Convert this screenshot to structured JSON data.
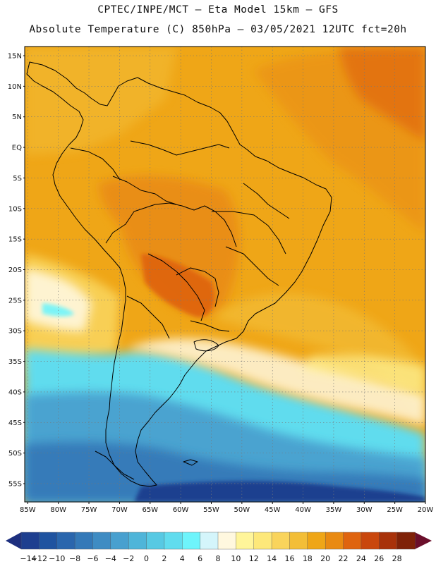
{
  "header": {
    "line1": "CPTEC/INPE/MCT –   Eta Model 15km – GFS",
    "line2": "Absolute Temperature (C) 850hPa – 03/05/2021 12UTC fct=20h"
  },
  "map": {
    "lat_labels": [
      "15N",
      "10N",
      "5N",
      "EQ",
      "5S",
      "10S",
      "15S",
      "20S",
      "25S",
      "30S",
      "35S",
      "40S",
      "45S",
      "50S",
      "55S"
    ],
    "lat_values": [
      15,
      10,
      5,
      0,
      -5,
      -10,
      -15,
      -20,
      -25,
      -30,
      -35,
      -40,
      -45,
      -50,
      -55
    ],
    "lon_labels": [
      "85W",
      "80W",
      "75W",
      "70W",
      "65W",
      "60W",
      "55W",
      "50W",
      "45W",
      "40W",
      "35W",
      "30W",
      "25W",
      "20W"
    ],
    "lon_values": [
      -85,
      -80,
      -75,
      -70,
      -65,
      -60,
      -55,
      -50,
      -45,
      -40,
      -35,
      -30,
      -25,
      -20
    ],
    "extent": {
      "lon_min": -85.5,
      "lon_max": -20,
      "lat_min": -58,
      "lat_max": 16.5
    }
  },
  "colorbar": {
    "labels": [
      "-14",
      "-12",
      "-10",
      "-8",
      "-6",
      "-4",
      "-2",
      "0",
      "2",
      "4",
      "6",
      "8",
      "10",
      "12",
      "14",
      "16",
      "18",
      "20",
      "22",
      "24",
      "26",
      "28"
    ],
    "colors": [
      "#1e3f8f",
      "#1f53a0",
      "#2a66ad",
      "#3479b8",
      "#3f8cc3",
      "#48a0cf",
      "#4fb5d9",
      "#57c9e3",
      "#61dcee",
      "#6ef4fb",
      "#d4f5fb",
      "#fff8df",
      "#fff59a",
      "#fde87a",
      "#f9d45c",
      "#f3be37",
      "#efa617",
      "#e98a12",
      "#df640f",
      "#c9470d",
      "#a8320a",
      "#7f2208"
    ],
    "low_arrow": "#1d2f7f",
    "high_arrow": "#6b0f2b"
  }
}
